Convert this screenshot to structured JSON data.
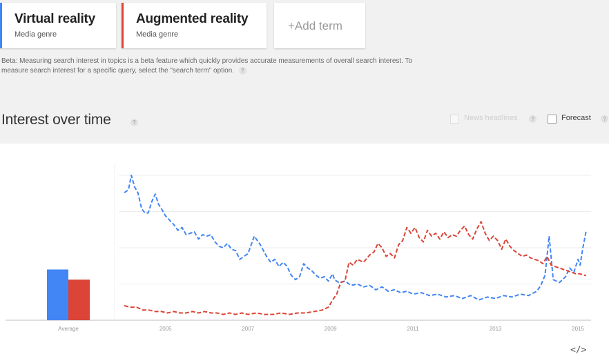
{
  "terms": [
    {
      "name": "Virtual reality",
      "type": "Media genre",
      "color": "#4285f4"
    },
    {
      "name": "Augmented reality",
      "type": "Media genre",
      "color": "#db4437"
    }
  ],
  "add_term_label": "+Add term",
  "beta_note": {
    "line1": "Beta: Measuring search interest in topics is a beta feature which quickly provides accurate measurements of overall search interest. To",
    "line2": "measure search interest for a specific query, select the \"search term\" option."
  },
  "section_title": "Interest over time",
  "help_glyph": "?",
  "options": {
    "news_headlines": {
      "label": "News headlines",
      "checked": false,
      "enabled": false
    },
    "forecast": {
      "label": "Forecast",
      "checked": false,
      "enabled": true
    }
  },
  "embed_glyph": "</>",
  "chart_data": {
    "type": "line",
    "ylim": [
      0,
      100
    ],
    "grid": true,
    "legend": "top-left",
    "x_ticks": [
      "2005",
      "2007",
      "2009",
      "2011",
      "2013",
      "2015"
    ],
    "average": {
      "label": "Average",
      "values": [
        {
          "name": "Virtual reality",
          "value": 35
        },
        {
          "name": "Augmented reality",
          "value": 28
        }
      ]
    },
    "series": [
      {
        "name": "Virtual reality",
        "color": "#4285f4",
        "dashed": true,
        "points": [
          [
            2004.0,
            88
          ],
          [
            2004.1,
            90
          ],
          [
            2004.17,
            100
          ],
          [
            2004.25,
            92
          ],
          [
            2004.33,
            88
          ],
          [
            2004.42,
            77
          ],
          [
            2004.5,
            74
          ],
          [
            2004.58,
            74
          ],
          [
            2004.67,
            82
          ],
          [
            2004.75,
            87
          ],
          [
            2004.83,
            80
          ],
          [
            2004.92,
            76
          ],
          [
            2005.0,
            72
          ],
          [
            2005.1,
            69
          ],
          [
            2005.2,
            66
          ],
          [
            2005.3,
            62
          ],
          [
            2005.4,
            64
          ],
          [
            2005.5,
            59
          ],
          [
            2005.6,
            60
          ],
          [
            2005.7,
            61
          ],
          [
            2005.8,
            56
          ],
          [
            2005.9,
            59
          ],
          [
            2006.0,
            58
          ],
          [
            2006.1,
            59
          ],
          [
            2006.2,
            54
          ],
          [
            2006.3,
            51
          ],
          [
            2006.4,
            50
          ],
          [
            2006.5,
            53
          ],
          [
            2006.6,
            49
          ],
          [
            2006.7,
            48
          ],
          [
            2006.8,
            42
          ],
          [
            2006.9,
            44
          ],
          [
            2007.0,
            46
          ],
          [
            2007.15,
            58
          ],
          [
            2007.3,
            52
          ],
          [
            2007.45,
            44
          ],
          [
            2007.55,
            40
          ],
          [
            2007.65,
            42
          ],
          [
            2007.75,
            37
          ],
          [
            2007.85,
            40
          ],
          [
            2007.95,
            37
          ],
          [
            2008.05,
            31
          ],
          [
            2008.15,
            28
          ],
          [
            2008.25,
            30
          ],
          [
            2008.35,
            39
          ],
          [
            2008.45,
            36
          ],
          [
            2008.55,
            34
          ],
          [
            2008.65,
            31
          ],
          [
            2008.75,
            29
          ],
          [
            2008.85,
            30
          ],
          [
            2008.95,
            27
          ],
          [
            2009.05,
            32
          ],
          [
            2009.1,
            28
          ],
          [
            2009.2,
            26
          ],
          [
            2009.35,
            27
          ],
          [
            2009.5,
            24
          ],
          [
            2009.65,
            25
          ],
          [
            2009.8,
            23
          ],
          [
            2009.95,
            24
          ],
          [
            2010.1,
            21
          ],
          [
            2010.25,
            23
          ],
          [
            2010.4,
            20
          ],
          [
            2010.55,
            21
          ],
          [
            2010.7,
            19
          ],
          [
            2010.85,
            20
          ],
          [
            2011.0,
            18
          ],
          [
            2011.2,
            19
          ],
          [
            2011.4,
            17
          ],
          [
            2011.6,
            18
          ],
          [
            2011.8,
            16
          ],
          [
            2012.0,
            17
          ],
          [
            2012.2,
            15
          ],
          [
            2012.4,
            17
          ],
          [
            2012.6,
            14
          ],
          [
            2012.8,
            16
          ],
          [
            2013.0,
            15
          ],
          [
            2013.2,
            17
          ],
          [
            2013.4,
            16
          ],
          [
            2013.6,
            18
          ],
          [
            2013.8,
            17
          ],
          [
            2014.0,
            20
          ],
          [
            2014.1,
            24
          ],
          [
            2014.2,
            31
          ],
          [
            2014.3,
            58
          ],
          [
            2014.4,
            28
          ],
          [
            2014.55,
            26
          ],
          [
            2014.7,
            30
          ],
          [
            2014.8,
            36
          ],
          [
            2014.9,
            33
          ],
          [
            2015.0,
            42
          ],
          [
            2015.05,
            38
          ],
          [
            2015.12,
            50
          ],
          [
            2015.2,
            62
          ]
        ]
      },
      {
        "name": "Augmented reality",
        "color": "#db4437",
        "dashed": true,
        "points": [
          [
            2004.0,
            10
          ],
          [
            2004.15,
            9
          ],
          [
            2004.3,
            9
          ],
          [
            2004.45,
            7
          ],
          [
            2004.6,
            7
          ],
          [
            2004.75,
            6
          ],
          [
            2004.9,
            6
          ],
          [
            2005.05,
            5
          ],
          [
            2005.2,
            6
          ],
          [
            2005.35,
            5
          ],
          [
            2005.5,
            5
          ],
          [
            2005.65,
            6
          ],
          [
            2005.8,
            5
          ],
          [
            2005.95,
            6
          ],
          [
            2006.1,
            5
          ],
          [
            2006.25,
            5
          ],
          [
            2006.4,
            4
          ],
          [
            2006.55,
            5
          ],
          [
            2006.7,
            4
          ],
          [
            2006.85,
            5
          ],
          [
            2007.0,
            4
          ],
          [
            2007.2,
            5
          ],
          [
            2007.4,
            4
          ],
          [
            2007.6,
            4
          ],
          [
            2007.8,
            5
          ],
          [
            2008.0,
            4
          ],
          [
            2008.2,
            5
          ],
          [
            2008.4,
            5
          ],
          [
            2008.6,
            6
          ],
          [
            2008.8,
            7
          ],
          [
            2008.95,
            9
          ],
          [
            2009.05,
            14
          ],
          [
            2009.15,
            18
          ],
          [
            2009.25,
            26
          ],
          [
            2009.35,
            27
          ],
          [
            2009.45,
            40
          ],
          [
            2009.55,
            38
          ],
          [
            2009.65,
            42
          ],
          [
            2009.8,
            40
          ],
          [
            2009.95,
            45
          ],
          [
            2010.05,
            47
          ],
          [
            2010.15,
            53
          ],
          [
            2010.25,
            50
          ],
          [
            2010.35,
            44
          ],
          [
            2010.45,
            46
          ],
          [
            2010.55,
            43
          ],
          [
            2010.65,
            52
          ],
          [
            2010.75,
            55
          ],
          [
            2010.85,
            64
          ],
          [
            2010.95,
            60
          ],
          [
            2011.05,
            64
          ],
          [
            2011.15,
            57
          ],
          [
            2011.25,
            54
          ],
          [
            2011.35,
            62
          ],
          [
            2011.45,
            58
          ],
          [
            2011.55,
            60
          ],
          [
            2011.65,
            56
          ],
          [
            2011.75,
            61
          ],
          [
            2011.85,
            57
          ],
          [
            2011.95,
            59
          ],
          [
            2012.05,
            58
          ],
          [
            2012.15,
            62
          ],
          [
            2012.25,
            65
          ],
          [
            2012.35,
            59
          ],
          [
            2012.45,
            56
          ],
          [
            2012.55,
            63
          ],
          [
            2012.65,
            68
          ],
          [
            2012.75,
            60
          ],
          [
            2012.85,
            55
          ],
          [
            2012.95,
            58
          ],
          [
            2013.05,
            55
          ],
          [
            2013.15,
            49
          ],
          [
            2013.25,
            56
          ],
          [
            2013.35,
            51
          ],
          [
            2013.45,
            48
          ],
          [
            2013.55,
            46
          ],
          [
            2013.65,
            44
          ],
          [
            2013.75,
            45
          ],
          [
            2013.85,
            43
          ],
          [
            2013.95,
            42
          ],
          [
            2014.05,
            41
          ],
          [
            2014.15,
            39
          ],
          [
            2014.25,
            44
          ],
          [
            2014.35,
            38
          ],
          [
            2014.45,
            37
          ],
          [
            2014.55,
            36
          ],
          [
            2014.65,
            35
          ],
          [
            2014.75,
            34
          ],
          [
            2014.85,
            33
          ],
          [
            2014.95,
            32
          ],
          [
            2015.05,
            32
          ],
          [
            2015.15,
            31
          ],
          [
            2015.2,
            31
          ]
        ]
      }
    ]
  }
}
